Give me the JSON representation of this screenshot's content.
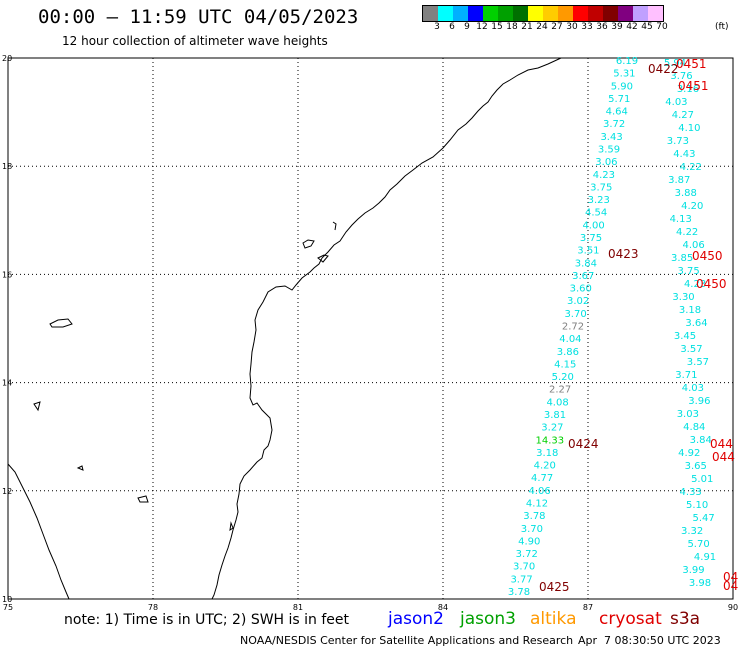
{
  "title": "00:00 – 11:59 UTC 04/05/2023",
  "subtitle": "12 hour collection of altimeter wave heights",
  "legend": {
    "colors": [
      "#808080",
      "#00ffff",
      "#00b0ff",
      "#0000ff",
      "#00d000",
      "#00a000",
      "#007000",
      "#ffff00",
      "#ffcc00",
      "#ff9900",
      "#ff0000",
      "#c00000",
      "#800000",
      "#800080",
      "#c0a0ff",
      "#ffc0ff"
    ],
    "labels": [
      "3",
      "6",
      "9",
      "12",
      "15",
      "18",
      "21",
      "24",
      "27",
      "30",
      "33",
      "36",
      "39",
      "42",
      "45",
      "70"
    ],
    "unit": "(ft)"
  },
  "axes": {
    "lat_labels": [
      "20",
      "18",
      "16",
      "14",
      "12",
      "10"
    ],
    "lon_labels": [
      "75",
      "78",
      "81",
      "84",
      "87",
      "90"
    ]
  },
  "tracks": [
    {
      "id": "west",
      "color": "#00e0e0",
      "points": [
        [
          "6.19",
          "#00e0e0"
        ],
        [
          "5.31",
          "#00e0e0"
        ],
        [
          "5.90",
          "#00e0e0"
        ],
        [
          "5.71",
          "#00e0e0"
        ],
        [
          "4.64",
          "#00e0e0"
        ],
        [
          "3.72",
          "#00e0e0"
        ],
        [
          "3.43",
          "#00e0e0"
        ],
        [
          "3.59",
          "#00e0e0"
        ],
        [
          "3.06",
          "#00e0e0"
        ],
        [
          "4.23",
          "#00e0e0"
        ],
        [
          "3.75",
          "#00e0e0"
        ],
        [
          "3.23",
          "#00e0e0"
        ],
        [
          "4.54",
          "#00e0e0"
        ],
        [
          "4.00",
          "#00e0e0"
        ],
        [
          "3.75",
          "#00e0e0"
        ],
        [
          "3.51",
          "#00e0e0"
        ],
        [
          "3.84",
          "#00e0e0"
        ],
        [
          "3.67",
          "#00e0e0"
        ],
        [
          "3.60",
          "#00e0e0"
        ],
        [
          "3.02",
          "#00e0e0"
        ],
        [
          "3.70",
          "#00e0e0"
        ],
        [
          "2.72",
          "#808080"
        ],
        [
          "4.04",
          "#00e0e0"
        ],
        [
          "3.86",
          "#00e0e0"
        ],
        [
          "4.15",
          "#00e0e0"
        ],
        [
          "5.20",
          "#00e0e0"
        ],
        [
          "2.27",
          "#808080"
        ],
        [
          "4.08",
          "#00e0e0"
        ],
        [
          "3.81",
          "#00e0e0"
        ],
        [
          "3.27",
          "#00e0e0"
        ],
        [
          "14.33",
          "#00d000"
        ],
        [
          "3.18",
          "#00e0e0"
        ],
        [
          "4.20",
          "#00e0e0"
        ],
        [
          "4.77",
          "#00e0e0"
        ],
        [
          "4.06",
          "#00e0e0"
        ],
        [
          "4.12",
          "#00e0e0"
        ],
        [
          "3.78",
          "#00e0e0"
        ],
        [
          "3.70",
          "#00e0e0"
        ],
        [
          "4.90",
          "#00e0e0"
        ],
        [
          "3.72",
          "#00e0e0"
        ],
        [
          "3.70",
          "#00e0e0"
        ],
        [
          "3.77",
          "#00e0e0"
        ],
        [
          "3.78",
          "#00e0e0"
        ]
      ]
    },
    {
      "id": "east",
      "color": "#00e0e0",
      "points": [
        [
          "5.94",
          ""
        ],
        [
          "3.76",
          ""
        ],
        [
          "3.16",
          ""
        ],
        [
          "4.03",
          ""
        ],
        [
          "4.27",
          ""
        ],
        [
          "4.10",
          ""
        ],
        [
          "3.73",
          ""
        ],
        [
          "4.43",
          ""
        ],
        [
          "4.22",
          ""
        ],
        [
          "3.87",
          ""
        ],
        [
          "3.88",
          ""
        ],
        [
          "4.20",
          ""
        ],
        [
          "4.13",
          ""
        ],
        [
          "4.22",
          ""
        ],
        [
          "4.06",
          ""
        ],
        [
          "3.85",
          ""
        ],
        [
          "3.75",
          ""
        ],
        [
          "4.23",
          ""
        ],
        [
          "3.30",
          ""
        ],
        [
          "3.18",
          ""
        ],
        [
          "3.64",
          ""
        ],
        [
          "3.45",
          ""
        ],
        [
          "3.57",
          ""
        ],
        [
          "3.57",
          ""
        ],
        [
          "3.71",
          ""
        ],
        [
          "4.03",
          ""
        ],
        [
          "3.96",
          ""
        ],
        [
          "3.03",
          ""
        ],
        [
          "4.84",
          ""
        ],
        [
          "3.84",
          ""
        ],
        [
          "4.92",
          ""
        ],
        [
          "3.65",
          ""
        ],
        [
          "5.01",
          ""
        ],
        [
          "4.33",
          ""
        ],
        [
          "5.10",
          ""
        ],
        [
          "5.47",
          ""
        ],
        [
          "3.32",
          ""
        ],
        [
          "5.70",
          ""
        ],
        [
          "4.91",
          ""
        ],
        [
          "3.99",
          ""
        ],
        [
          "3.98",
          ""
        ]
      ]
    }
  ],
  "time_labels": [
    {
      "text": "0422",
      "color": "#800000"
    },
    {
      "text": "0451",
      "color": "#e00000"
    },
    {
      "text": "0451",
      "color": "#e00000"
    },
    {
      "text": "0423",
      "color": "#800000"
    },
    {
      "text": "0450",
      "color": "#e00000"
    },
    {
      "text": "0450",
      "color": "#e00000"
    },
    {
      "text": "0424",
      "color": "#800000"
    },
    {
      "text": "044",
      "color": "#e00000"
    },
    {
      "text": "044",
      "color": "#e00000"
    },
    {
      "text": "0425",
      "color": "#800000"
    },
    {
      "text": "04",
      "color": "#e00000"
    },
    {
      "text": "04",
      "color": "#e00000"
    }
  ],
  "footer": {
    "note": "note: 1) Time is in UTC; 2) SWH is in feet",
    "satellites": [
      {
        "name": "jason2",
        "color": "#0000ff"
      },
      {
        "name": "jason3",
        "color": "#00a000"
      },
      {
        "name": "altika",
        "color": "#ff9900"
      },
      {
        "name": "cryosat",
        "color": "#e00000"
      },
      {
        "name": "s3a",
        "color": "#800000"
      }
    ],
    "credit": "NOAA/NESDIS Center for Satellite Applications and Research",
    "timestamp": "Apr  7 08:30:50 UTC 2023"
  }
}
